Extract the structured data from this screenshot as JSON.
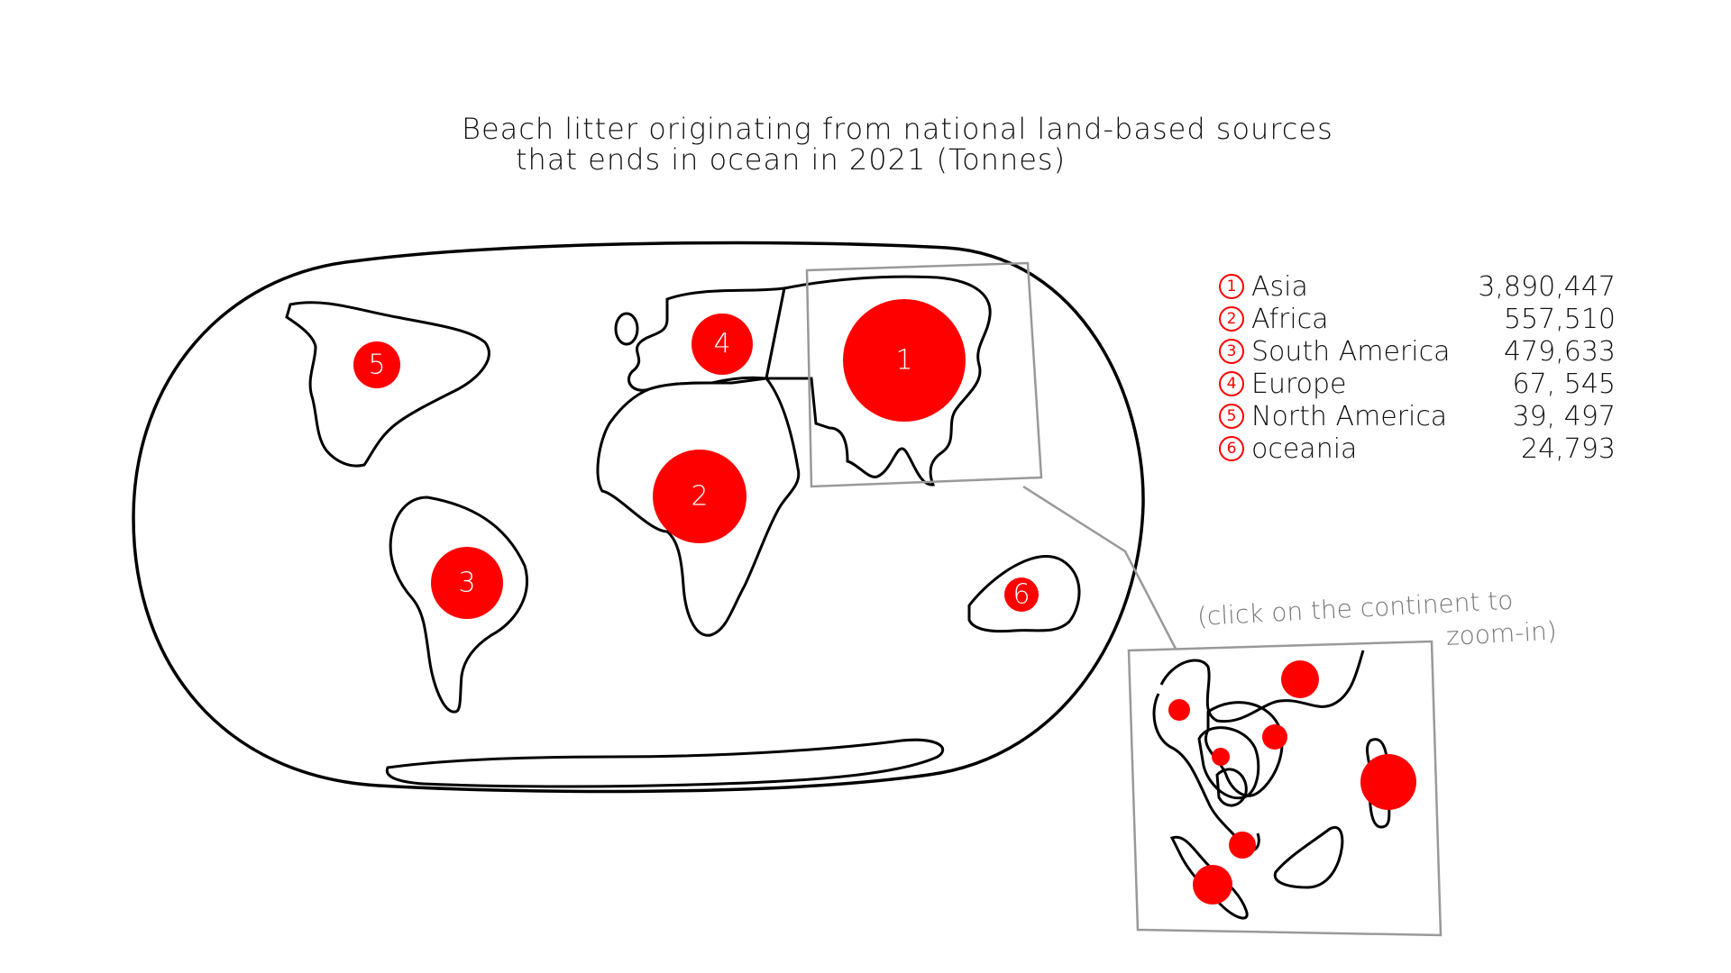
{
  "title": {
    "line1": "Beach litter originating from national land-based sources",
    "line2": "that ends in ocean in 2021 (Tonnes)"
  },
  "hint": {
    "line1": "(click on the continent to",
    "line2": "zoom-in)"
  },
  "regions": [
    {
      "id": "1",
      "name": "Asia",
      "value": "3,890,447",
      "tonnes": 3890447
    },
    {
      "id": "2",
      "name": "Africa",
      "value": "557,510",
      "tonnes": 557510
    },
    {
      "id": "3",
      "name": "South America",
      "value": "479,633",
      "tonnes": 479633
    },
    {
      "id": "4",
      "name": "Europe",
      "value": "67, 545",
      "tonnes": 67545
    },
    {
      "id": "5",
      "name": "North America",
      "value": "39, 497",
      "tonnes": 39497
    },
    {
      "id": "6",
      "name": "oceania",
      "value": "24,793",
      "tonnes": 24793
    }
  ],
  "colors": {
    "bubble": "#ff0000",
    "outline": "#000000",
    "zoom_frame": "#999999",
    "hint_text": "#777777"
  },
  "icons": {
    "region_marker": "circled-number-icon",
    "zoom_frame": "zoom-frame-icon"
  }
}
